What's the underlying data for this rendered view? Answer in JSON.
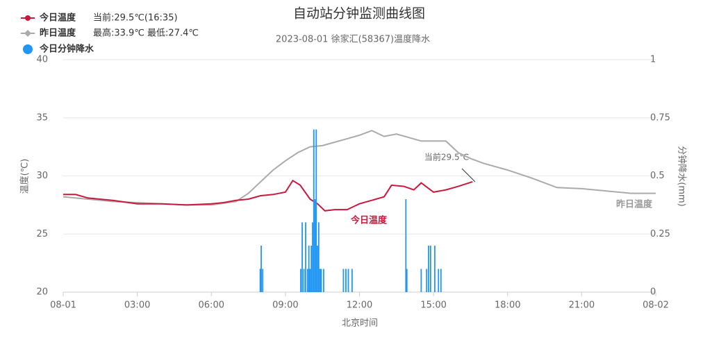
{
  "chart_data": {
    "type": "line",
    "title": "自动站分钟监测曲线图",
    "subtitle": "2023-08-01 徐家汇(58367)温度降水",
    "x_label": "北京时间",
    "y_label": "温度(℃)",
    "y2_label": "分钟降水(mm)",
    "legend_info": [
      "当前:29.5℃(16:35)",
      "最高:33.9℃ 最低:27.4℃"
    ],
    "annotations": [
      "当前29.5℃",
      "今日温度",
      "昨日温度"
    ],
    "xlim": [
      0,
      24
    ],
    "xticks": [
      {
        "value": 0,
        "label": "08-01"
      },
      {
        "value": 3,
        "label": "03:00"
      },
      {
        "value": 6,
        "label": "06:00"
      },
      {
        "value": 9,
        "label": "09:00"
      },
      {
        "value": 12,
        "label": "12:00"
      },
      {
        "value": 15,
        "label": "15:00"
      },
      {
        "value": 18,
        "label": "18:00"
      },
      {
        "value": 21,
        "label": "21:00"
      },
      {
        "value": 24,
        "label": "08-02"
      }
    ],
    "ylim": [
      20,
      40
    ],
    "yticks": [
      20,
      25,
      30,
      35,
      40
    ],
    "y2lim": [
      0,
      1
    ],
    "y2ticks": [
      0,
      0.25,
      0.5,
      0.75,
      1
    ],
    "grid": true,
    "series": [
      {
        "name": "今日温度",
        "color": "#c8193c",
        "type": "line",
        "x": [
          0,
          0.5,
          1,
          2,
          3,
          4,
          5,
          6,
          6.5,
          7,
          7.5,
          8,
          8.5,
          9,
          9.3,
          9.6,
          10,
          10.3,
          10.6,
          11,
          11.5,
          12,
          12.5,
          13,
          13.3,
          13.8,
          14.2,
          14.5,
          15,
          15.5,
          16,
          16.58
        ],
        "values": [
          28.4,
          28.4,
          28.1,
          27.9,
          27.6,
          27.6,
          27.5,
          27.6,
          27.7,
          27.9,
          28.0,
          28.3,
          28.4,
          28.6,
          29.6,
          29.2,
          28.0,
          27.6,
          27.0,
          27.1,
          27.1,
          27.6,
          27.9,
          28.2,
          29.2,
          29.1,
          28.8,
          29.4,
          28.6,
          28.8,
          29.1,
          29.5
        ]
      },
      {
        "name": "昨日温度",
        "color": "#aaaaaa",
        "type": "line",
        "x": [
          0,
          1,
          2,
          3,
          4,
          5,
          6,
          7,
          7.5,
          8,
          8.5,
          9,
          9.5,
          10,
          10.5,
          11,
          11.5,
          12,
          12.5,
          13,
          13.5,
          14,
          14.5,
          15,
          15.5,
          16,
          16.5,
          17,
          18,
          19,
          20,
          21,
          22,
          23,
          24
        ],
        "values": [
          28.2,
          28.0,
          27.8,
          27.7,
          27.6,
          27.5,
          27.5,
          27.8,
          28.5,
          29.5,
          30.5,
          31.3,
          32.0,
          32.5,
          32.6,
          32.9,
          33.2,
          33.5,
          33.9,
          33.4,
          33.6,
          33.3,
          33.0,
          33.0,
          33.0,
          32.0,
          31.5,
          31.1,
          30.5,
          29.8,
          29.0,
          28.9,
          28.7,
          28.5,
          28.5
        ]
      },
      {
        "name": "今日分钟降水",
        "color": "#2196f3",
        "type": "bar",
        "axis": "y2",
        "x": [
          7.98,
          8.02,
          8.08,
          9.62,
          9.68,
          9.75,
          9.82,
          9.9,
          9.95,
          10.0,
          10.05,
          10.1,
          10.15,
          10.2,
          10.25,
          10.3,
          10.35,
          10.4,
          10.45,
          10.55,
          11.35,
          11.45,
          11.55,
          11.7,
          13.88,
          13.92,
          14.5,
          14.72,
          14.8,
          14.88,
          15.05,
          15.2,
          15.3
        ],
        "values": [
          0.1,
          0.2,
          0.1,
          0.1,
          0.3,
          0.1,
          0.3,
          0.1,
          0.2,
          0.1,
          0.2,
          0.3,
          0.7,
          0.4,
          0.7,
          0.2,
          0.3,
          0.1,
          0.1,
          0.1,
          0.1,
          0.1,
          0.1,
          0.1,
          0.4,
          0.1,
          0.1,
          0.1,
          0.2,
          0.2,
          0.2,
          0.1,
          0.1
        ]
      }
    ]
  }
}
